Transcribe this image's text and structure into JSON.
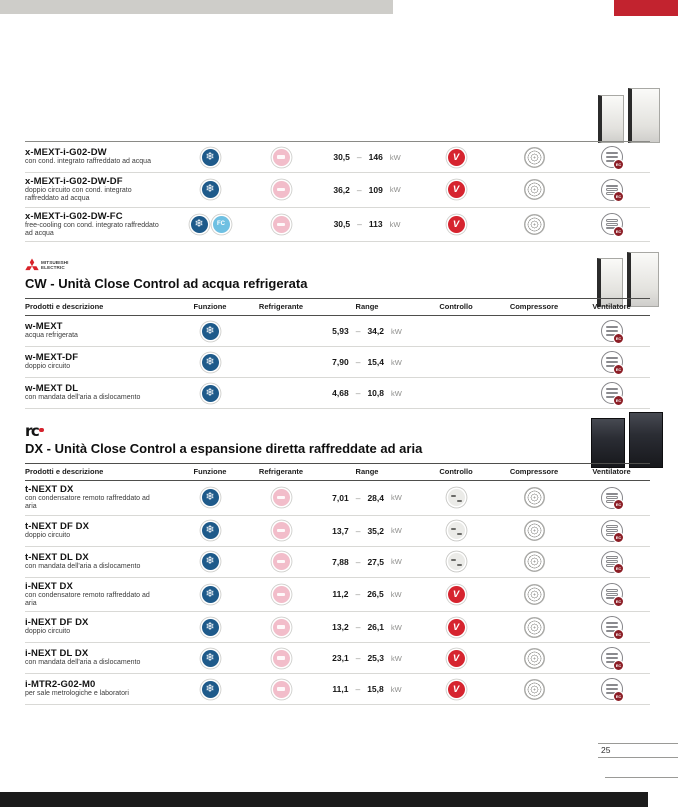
{
  "page": {
    "number": "25"
  },
  "columns": [
    "Prodotti e descrizione",
    "Funzione",
    "Refrigerante",
    "Range",
    "Controllo",
    "Compressore",
    "Ventilatore"
  ],
  "range_sep": "–",
  "icon_labels": {
    "cool": "❄",
    "fc": "FC",
    "inv": "V",
    "ec": "EC"
  },
  "icon_names": {
    "cool": "cooling-function-icon",
    "fc": "free-cooling-function-icon",
    "ref": "refrigerant-icon",
    "inv": "inverter-control-icon",
    "onoff": "step-control-icon",
    "scroll": "scroll-compressor-icon",
    "fanec": "ec-fan-icon"
  },
  "sections": [
    {
      "show_header": false,
      "rows": [
        {
          "name": "x-MEXT-i-G02-DW",
          "desc": "con cond. integrato raffreddato ad acqua",
          "funzione": [
            "cool"
          ],
          "refrigerante": [
            "ref"
          ],
          "range": {
            "min": "30,5",
            "max": "146",
            "unit": "kW"
          },
          "controllo": [
            "inv"
          ],
          "compressore": [
            "scroll"
          ],
          "ventilatore": [
            "fanec"
          ]
        },
        {
          "name": "x-MEXT-i-G02-DW-DF",
          "desc": "doppio circuito con cond. integrato raffreddato ad acqua",
          "funzione": [
            "cool"
          ],
          "refrigerante": [
            "ref"
          ],
          "range": {
            "min": "36,2",
            "max": "109",
            "unit": "kW"
          },
          "controllo": [
            "inv"
          ],
          "compressore": [
            "scroll"
          ],
          "ventilatore": [
            "fanec"
          ]
        },
        {
          "name": "x-MEXT-i-G02-DW-FC",
          "desc": "free-cooling con cond. integrato raffreddato ad acqua",
          "funzione": [
            "cool",
            "fc"
          ],
          "refrigerante": [
            "ref"
          ],
          "range": {
            "min": "30,5",
            "max": "113",
            "unit": "kW"
          },
          "controllo": [
            "inv"
          ],
          "compressore": [
            "scroll"
          ],
          "ventilatore": [
            "fanec"
          ]
        }
      ]
    },
    {
      "brand_line1": "MITSUBISHI",
      "brand_line2": "ELECTRIC",
      "title": "CW - Unità Close Control ad acqua refrigerata",
      "show_header": true,
      "rows": [
        {
          "name": "w-MEXT",
          "desc": "acqua refrigerata",
          "funzione": [
            "cool"
          ],
          "refrigerante": [],
          "range": {
            "min": "5,93",
            "max": "34,2",
            "unit": "kW"
          },
          "controllo": [],
          "compressore": [],
          "ventilatore": [
            "fanec"
          ]
        },
        {
          "name": "w-MEXT-DF",
          "desc": "doppio circuito",
          "funzione": [
            "cool"
          ],
          "refrigerante": [],
          "range": {
            "min": "7,90",
            "max": "15,4",
            "unit": "kW"
          },
          "controllo": [],
          "compressore": [],
          "ventilatore": [
            "fanec"
          ]
        },
        {
          "name": "w-MEXT DL",
          "desc": "con mandata dell'aria a dislocamento",
          "funzione": [
            "cool"
          ],
          "refrigerante": [],
          "range": {
            "min": "4,68",
            "max": "10,8",
            "unit": "kW"
          },
          "controllo": [],
          "compressore": [],
          "ventilatore": [
            "fanec"
          ]
        }
      ]
    },
    {
      "brand_mark": "rc",
      "title": "DX - Unità Close Control a espansione diretta raffreddate ad aria",
      "show_header": true,
      "rows": [
        {
          "name": "t-NEXT DX",
          "desc": "con condensatore remoto raffreddato ad aria",
          "funzione": [
            "cool"
          ],
          "refrigerante": [
            "ref"
          ],
          "range": {
            "min": "7,01",
            "max": "28,4",
            "unit": "kW"
          },
          "controllo": [
            "onoff"
          ],
          "compressore": [
            "scroll"
          ],
          "ventilatore": [
            "fanec"
          ]
        },
        {
          "name": "t-NEXT DF DX",
          "desc": "doppio circuito",
          "funzione": [
            "cool"
          ],
          "refrigerante": [
            "ref"
          ],
          "range": {
            "min": "13,7",
            "max": "35,2",
            "unit": "kW"
          },
          "controllo": [
            "onoff"
          ],
          "compressore": [
            "scroll"
          ],
          "ventilatore": [
            "fanec"
          ]
        },
        {
          "name": "t-NEXT DL DX",
          "desc": "con mandata dell'aria a dislocamento",
          "funzione": [
            "cool"
          ],
          "refrigerante": [
            "ref"
          ],
          "range": {
            "min": "7,88",
            "max": "27,5",
            "unit": "kW"
          },
          "controllo": [
            "onoff"
          ],
          "compressore": [
            "scroll"
          ],
          "ventilatore": [
            "fanec"
          ]
        },
        {
          "name": "i-NEXT DX",
          "desc": "con condensatore remoto raffreddato ad aria",
          "funzione": [
            "cool"
          ],
          "refrigerante": [
            "ref"
          ],
          "range": {
            "min": "11,2",
            "max": "26,5",
            "unit": "kW"
          },
          "controllo": [
            "inv"
          ],
          "compressore": [
            "scroll"
          ],
          "ventilatore": [
            "fanec"
          ]
        },
        {
          "name": "i-NEXT DF DX",
          "desc": "doppio circuito",
          "funzione": [
            "cool"
          ],
          "refrigerante": [
            "ref"
          ],
          "range": {
            "min": "13,2",
            "max": "26,1",
            "unit": "kW"
          },
          "controllo": [
            "inv"
          ],
          "compressore": [
            "scroll"
          ],
          "ventilatore": [
            "fanec"
          ]
        },
        {
          "name": "i-NEXT DL DX",
          "desc": "con mandata dell'aria a dislocamento",
          "funzione": [
            "cool"
          ],
          "refrigerante": [
            "ref"
          ],
          "range": {
            "min": "23,1",
            "max": "25,3",
            "unit": "kW"
          },
          "controllo": [
            "inv"
          ],
          "compressore": [
            "scroll"
          ],
          "ventilatore": [
            "fanec"
          ]
        },
        {
          "name": "i-MTR2-G02-M0",
          "desc": "per sale metrologiche e laboratori",
          "funzione": [
            "cool"
          ],
          "refrigerante": [
            "ref"
          ],
          "range": {
            "min": "11,1",
            "max": "15,8",
            "unit": "kW"
          },
          "controllo": [
            "inv"
          ],
          "compressore": [
            "scroll"
          ],
          "ventilatore": [
            "fanec"
          ]
        }
      ]
    }
  ]
}
